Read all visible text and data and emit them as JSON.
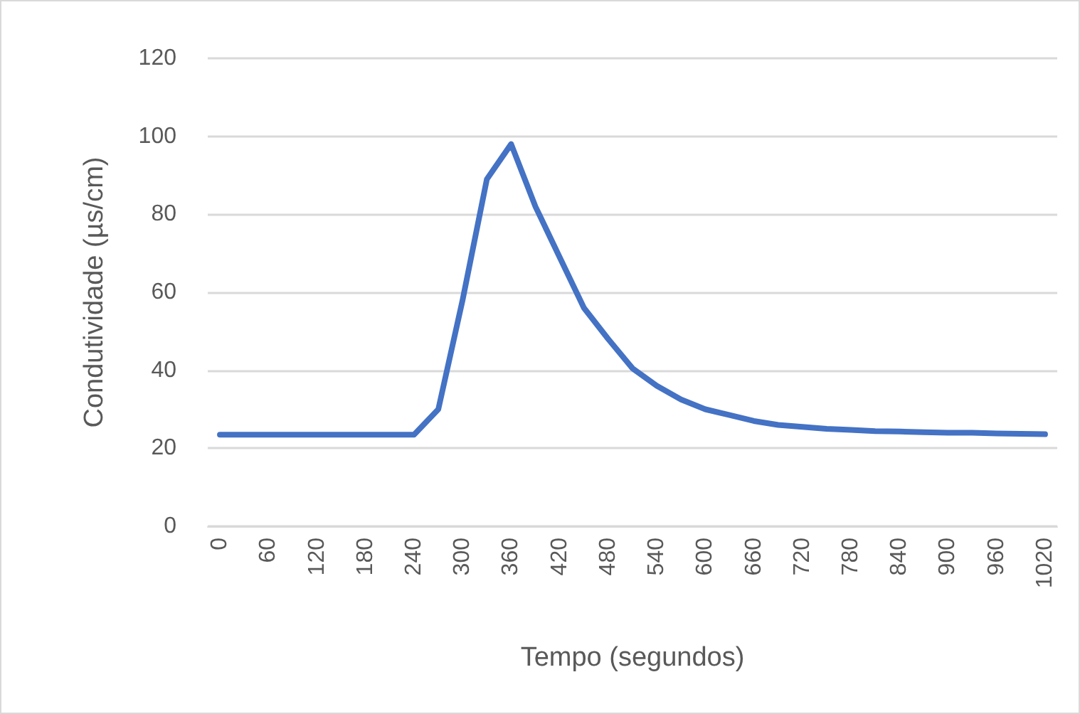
{
  "chart_data": {
    "type": "line",
    "xlabel": "Tempo (segundos)",
    "ylabel": "Condutividade (µs/cm)",
    "categories": [
      "0",
      null,
      "60",
      null,
      "120",
      null,
      "180",
      null,
      "240",
      null,
      "300",
      null,
      "360",
      null,
      "420",
      null,
      "480",
      null,
      "540",
      null,
      "600",
      null,
      "660",
      null,
      "720",
      null,
      "780",
      null,
      "840",
      null,
      "900",
      null,
      "960",
      null,
      "1020"
    ],
    "series": [
      {
        "color": "#4472c4",
        "values": [
          23.5,
          23.5,
          23.5,
          23.5,
          23.5,
          23.5,
          23.5,
          23.5,
          23.5,
          30,
          58,
          89,
          98,
          82,
          69,
          56,
          48,
          40.5,
          36,
          32.5,
          30,
          28.5,
          27,
          26,
          25.5,
          25,
          24.7,
          24.4,
          24.3,
          24.1,
          24,
          24,
          23.8,
          23.7,
          23.6
        ]
      }
    ],
    "ylim": [
      0,
      120
    ],
    "yticks": [
      0,
      20,
      40,
      60,
      80,
      100,
      120
    ],
    "grid": "y",
    "marker": "none",
    "line_style": "solid"
  }
}
